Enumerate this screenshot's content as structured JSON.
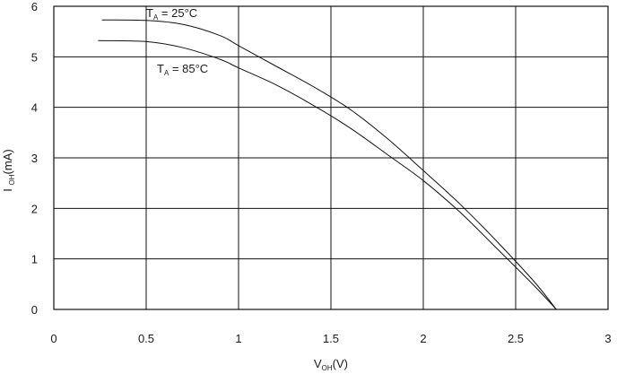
{
  "chart_data": {
    "type": "line",
    "xlabel": {
      "main": "V",
      "sub": "OH",
      "suffix": "(V)"
    },
    "ylabel": {
      "main": "I ",
      "sub": "OH",
      "suffix": "(mA)"
    },
    "xlim": [
      0,
      3
    ],
    "ylim": [
      0,
      6
    ],
    "xticks": [
      "0",
      "0.5",
      "1",
      "1.5",
      "2",
      "2.5",
      "3"
    ],
    "yticks": [
      "0",
      "1",
      "2",
      "3",
      "4",
      "5",
      "6"
    ],
    "grid": true,
    "series": [
      {
        "name": {
          "main": "T",
          "sub": "A",
          "suffix": " = 25°C"
        },
        "x": [
          0.26,
          0.5,
          0.7,
          0.9,
          1.0,
          1.2,
          1.4,
          1.6,
          1.8,
          2.0,
          2.2,
          2.4,
          2.6,
          2.72
        ],
        "y": [
          5.73,
          5.72,
          5.64,
          5.42,
          5.22,
          4.82,
          4.42,
          3.97,
          3.4,
          2.75,
          2.08,
          1.34,
          0.55,
          0.0
        ]
      },
      {
        "name": {
          "main": "T",
          "sub": "A",
          "suffix": " = 85°C"
        },
        "x": [
          0.24,
          0.5,
          0.7,
          0.9,
          1.0,
          1.2,
          1.4,
          1.6,
          1.8,
          2.0,
          2.2,
          2.4,
          2.6,
          2.72
        ],
        "y": [
          5.32,
          5.3,
          5.18,
          4.95,
          4.78,
          4.45,
          4.05,
          3.6,
          3.08,
          2.55,
          1.92,
          1.2,
          0.47,
          0.0
        ]
      }
    ]
  }
}
